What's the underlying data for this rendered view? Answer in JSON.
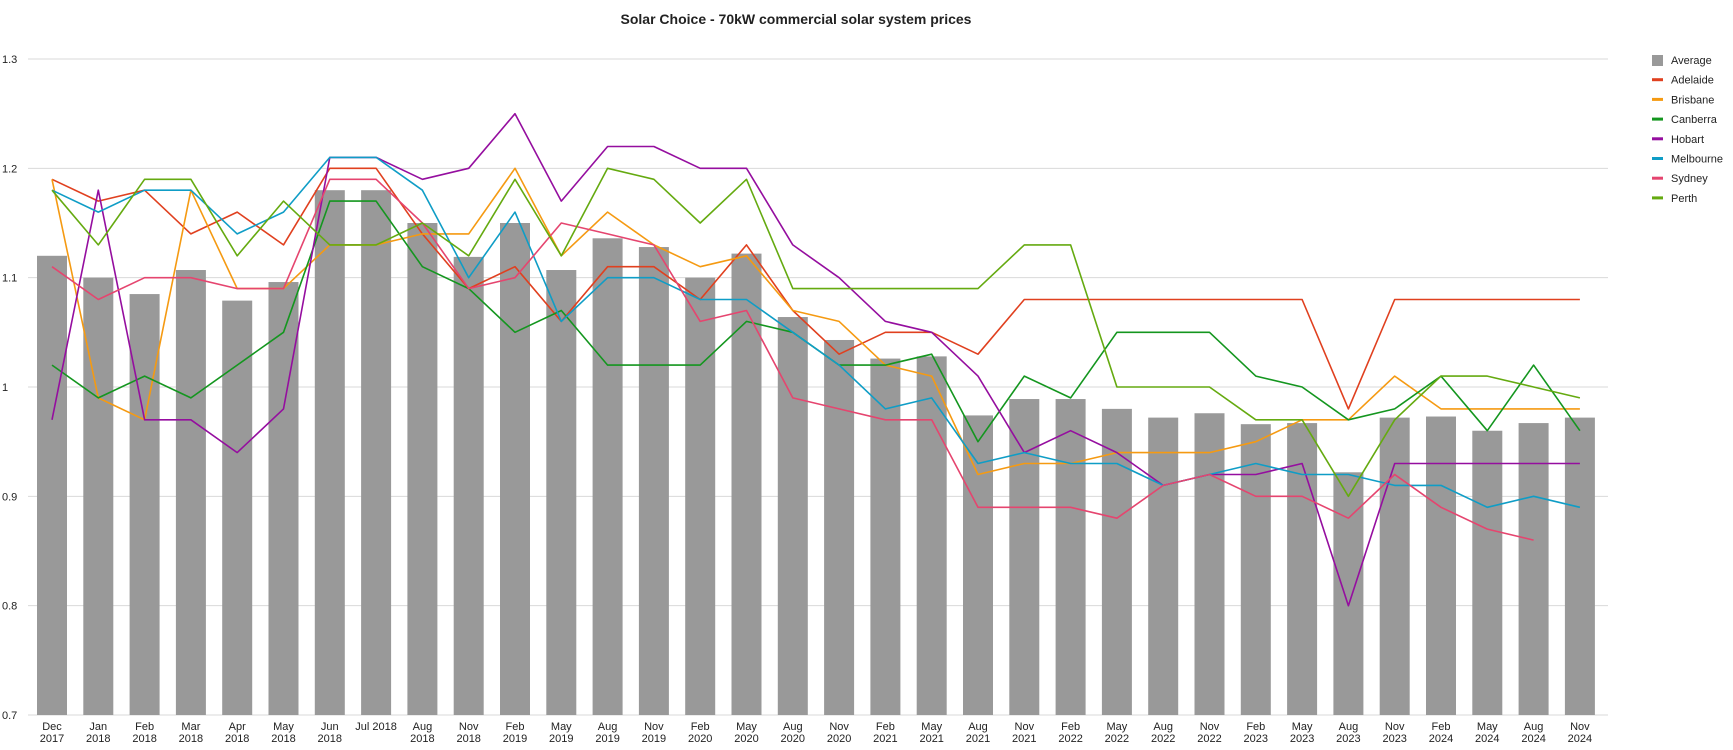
{
  "chart_data": {
    "type": "bar",
    "title": "Solar Choice - 70kW commercial solar system prices",
    "xlabel": "",
    "ylabel": "",
    "ylim": [
      0.7,
      1.3
    ],
    "yticks": [
      "0.7",
      "0.8",
      "0.9",
      "1",
      "1.1",
      "1.2",
      "1.3"
    ],
    "grid": true,
    "legend_position": "right",
    "categories": [
      [
        "Dec",
        "2017"
      ],
      [
        "Jan",
        "2018"
      ],
      [
        "Feb",
        "2018"
      ],
      [
        "Mar",
        "2018"
      ],
      [
        "Apr",
        "2018"
      ],
      [
        "May",
        "2018"
      ],
      [
        "Jun",
        "2018"
      ],
      [
        "Jul 2018",
        ""
      ],
      [
        "Aug",
        "2018"
      ],
      [
        "Nov",
        "2018"
      ],
      [
        "Feb",
        "2019"
      ],
      [
        "May",
        "2019"
      ],
      [
        "Aug",
        "2019"
      ],
      [
        "Nov",
        "2019"
      ],
      [
        "Feb",
        "2020"
      ],
      [
        "May",
        "2020"
      ],
      [
        "Aug",
        "2020"
      ],
      [
        "Nov",
        "2020"
      ],
      [
        "Feb",
        "2021"
      ],
      [
        "May",
        "2021"
      ],
      [
        "Aug",
        "2021"
      ],
      [
        "Nov",
        "2021"
      ],
      [
        "Feb",
        "2022"
      ],
      [
        "May",
        "2022"
      ],
      [
        "Aug",
        "2022"
      ],
      [
        "Nov",
        "2022"
      ],
      [
        "Feb",
        "2023"
      ],
      [
        "May",
        "2023"
      ],
      [
        "Aug",
        "2023"
      ],
      [
        "Nov",
        "2023"
      ],
      [
        "Feb",
        "2024"
      ],
      [
        "May",
        "2024"
      ],
      [
        "Aug",
        "2024"
      ],
      [
        "Nov",
        "2024"
      ]
    ],
    "bar_series": {
      "name": "Average",
      "color": "#999999",
      "values": [
        1.12,
        1.1,
        1.085,
        1.107,
        1.079,
        1.096,
        1.18,
        1.18,
        1.15,
        1.119,
        1.15,
        1.107,
        1.136,
        1.128,
        1.1,
        1.122,
        1.064,
        1.043,
        1.026,
        1.028,
        0.974,
        0.989,
        0.989,
        0.98,
        0.972,
        0.976,
        0.966,
        0.967,
        0.922,
        0.972,
        0.973,
        0.96,
        0.967,
        0.972
      ]
    },
    "line_series": [
      {
        "name": "Adelaide",
        "color": "#e0401f",
        "values": [
          1.19,
          1.17,
          1.18,
          1.14,
          1.16,
          1.13,
          1.2,
          1.2,
          1.14,
          1.09,
          1.11,
          1.06,
          1.11,
          1.11,
          1.08,
          1.13,
          1.07,
          1.03,
          1.05,
          1.05,
          1.03,
          1.08,
          1.08,
          1.08,
          1.08,
          1.08,
          1.08,
          1.08,
          0.98,
          1.08,
          1.08,
          1.08,
          1.08,
          1.08
        ]
      },
      {
        "name": "Brisbane",
        "color": "#f59a12",
        "values": [
          1.19,
          0.99,
          0.97,
          1.18,
          1.09,
          1.09,
          1.13,
          1.13,
          1.14,
          1.14,
          1.2,
          1.12,
          1.16,
          1.13,
          1.11,
          1.12,
          1.07,
          1.06,
          1.02,
          1.01,
          0.92,
          0.93,
          0.93,
          0.94,
          0.94,
          0.94,
          0.95,
          0.97,
          0.97,
          1.01,
          0.98,
          0.98,
          0.98,
          0.98
        ]
      },
      {
        "name": "Canberra",
        "color": "#14961f",
        "values": [
          1.02,
          0.99,
          1.01,
          0.99,
          1.02,
          1.05,
          1.17,
          1.17,
          1.11,
          1.09,
          1.05,
          1.07,
          1.02,
          1.02,
          1.02,
          1.06,
          1.05,
          1.02,
          1.02,
          1.03,
          0.95,
          1.01,
          0.99,
          1.05,
          1.05,
          1.05,
          1.01,
          1.0,
          0.97,
          0.98,
          1.01,
          0.96,
          1.02,
          0.96
        ]
      },
      {
        "name": "Hobart",
        "color": "#950e9f",
        "values": [
          0.97,
          1.18,
          0.97,
          0.97,
          0.94,
          0.98,
          1.21,
          1.21,
          1.19,
          1.2,
          1.25,
          1.17,
          1.22,
          1.22,
          1.2,
          1.2,
          1.13,
          1.1,
          1.06,
          1.05,
          1.01,
          0.94,
          0.96,
          0.94,
          0.91,
          0.92,
          0.92,
          0.93,
          0.8,
          0.93,
          0.93,
          0.93,
          0.93,
          0.93
        ]
      },
      {
        "name": "Melbourne",
        "color": "#0f9dc6",
        "values": [
          1.18,
          1.16,
          1.18,
          1.18,
          1.14,
          1.16,
          1.21,
          1.21,
          1.18,
          1.1,
          1.16,
          1.06,
          1.1,
          1.1,
          1.08,
          1.08,
          1.05,
          1.02,
          0.98,
          0.99,
          0.93,
          0.94,
          0.93,
          0.93,
          0.91,
          0.92,
          0.93,
          0.92,
          0.92,
          0.91,
          0.91,
          0.89,
          0.9,
          0.89
        ]
      },
      {
        "name": "Sydney",
        "color": "#e5456f",
        "values": [
          1.11,
          1.08,
          1.1,
          1.1,
          1.09,
          1.09,
          1.19,
          1.19,
          1.15,
          1.09,
          1.1,
          1.15,
          1.14,
          1.13,
          1.06,
          1.07,
          0.99,
          0.98,
          0.97,
          0.97,
          0.89,
          0.89,
          0.89,
          0.88,
          0.91,
          0.92,
          0.9,
          0.9,
          0.88,
          0.92,
          0.89,
          0.87,
          0.86,
          null
        ]
      },
      {
        "name": "Perth",
        "color": "#65aa10",
        "values": [
          1.18,
          1.13,
          1.19,
          1.19,
          1.12,
          1.17,
          1.13,
          1.13,
          1.15,
          1.12,
          1.19,
          1.12,
          1.2,
          1.19,
          1.15,
          1.19,
          1.09,
          1.09,
          1.09,
          1.09,
          1.09,
          1.13,
          1.13,
          1.0,
          1.0,
          1.0,
          0.97,
          0.97,
          0.9,
          0.97,
          1.01,
          1.01,
          1.0,
          0.99
        ]
      }
    ]
  }
}
